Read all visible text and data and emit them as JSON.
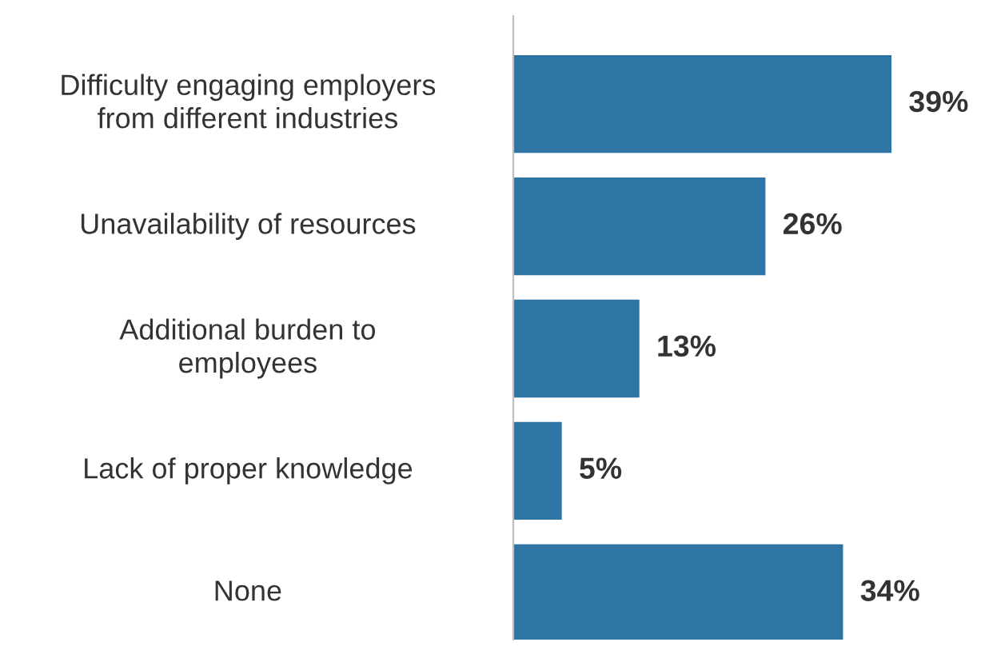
{
  "chart_data": {
    "type": "bar",
    "orientation": "horizontal",
    "categories": [
      "Difficulty engaging employers\nfrom different industries",
      "Unavailability of resources",
      "Additional burden to\nemployees",
      "Lack of proper knowledge",
      "None"
    ],
    "values": [
      39,
      26,
      13,
      5,
      34
    ],
    "value_labels": [
      "39%",
      "26%",
      "13%",
      "5%",
      "34%"
    ],
    "color": "#2e75a6",
    "grid": false,
    "legend": false
  }
}
